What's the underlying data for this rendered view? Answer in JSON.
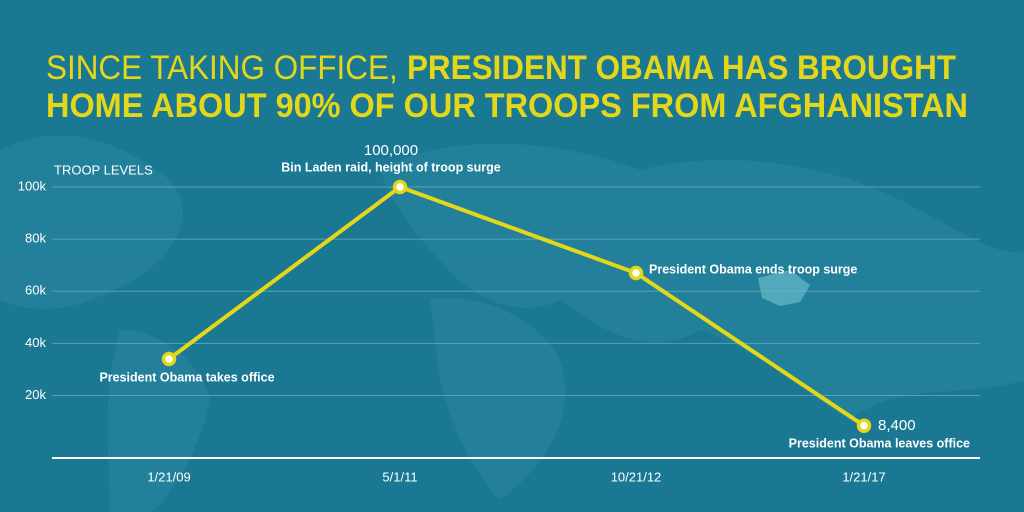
{
  "chart_data": {
    "type": "line",
    "title_lead": "SINCE TAKING OFFICE,",
    "title_lines": [
      "PRESIDENT OBAMA HAS BROUGHT",
      "HOME ABOUT 90% OF OUR TROOPS FROM AFGHANISTAN"
    ],
    "y_label": "TROOP LEVELS",
    "categories": [
      "1/21/09",
      "5/1/11",
      "10/21/12",
      "1/21/17"
    ],
    "values": [
      34000,
      100000,
      67000,
      8400
    ],
    "value_labels": [
      null,
      "100,000",
      null,
      "8,400"
    ],
    "annotations": [
      "President Obama takes office",
      "Bin Laden raid, height of troop surge",
      "President Obama ends troop surge",
      "President Obama leaves office"
    ],
    "color": "#e4d619",
    "ylim": [
      -4000,
      100000
    ],
    "yticks": [
      {
        "value": 20000,
        "label": "20k"
      },
      {
        "value": 40000,
        "label": "40k"
      },
      {
        "value": 60000,
        "label": "60k"
      },
      {
        "value": 80000,
        "label": "80k"
      },
      {
        "value": 100000,
        "label": "100k"
      }
    ],
    "grid": true
  }
}
